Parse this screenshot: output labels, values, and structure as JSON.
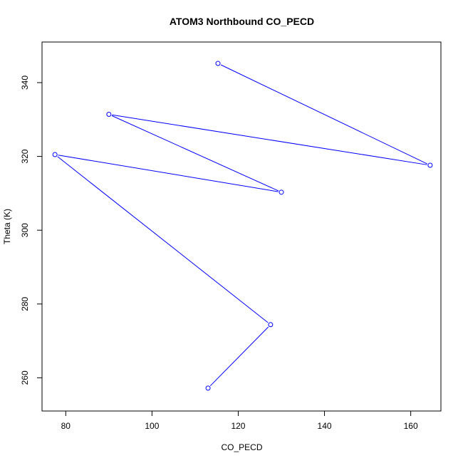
{
  "chart_data": {
    "type": "line",
    "title": "ATOM3 Northbound CO_PECD",
    "xlabel": "CO_PECD",
    "ylabel": "Theta (K)",
    "xlim": [
      74.5,
      167
    ],
    "ylim": [
      251,
      351
    ],
    "xticks": [
      80,
      100,
      120,
      140,
      160
    ],
    "yticks": [
      260,
      280,
      300,
      320,
      340
    ],
    "grid": false,
    "series": [
      {
        "color": "#0000ff",
        "marker": "open-circle",
        "points": [
          {
            "x": 113.0,
            "y": 257.2
          },
          {
            "x": 127.5,
            "y": 274.4
          },
          {
            "x": 77.5,
            "y": 320.5
          },
          {
            "x": 130.0,
            "y": 310.3
          },
          {
            "x": 90.0,
            "y": 331.4
          },
          {
            "x": 164.5,
            "y": 317.6
          },
          {
            "x": 115.3,
            "y": 345.2
          }
        ]
      }
    ]
  }
}
